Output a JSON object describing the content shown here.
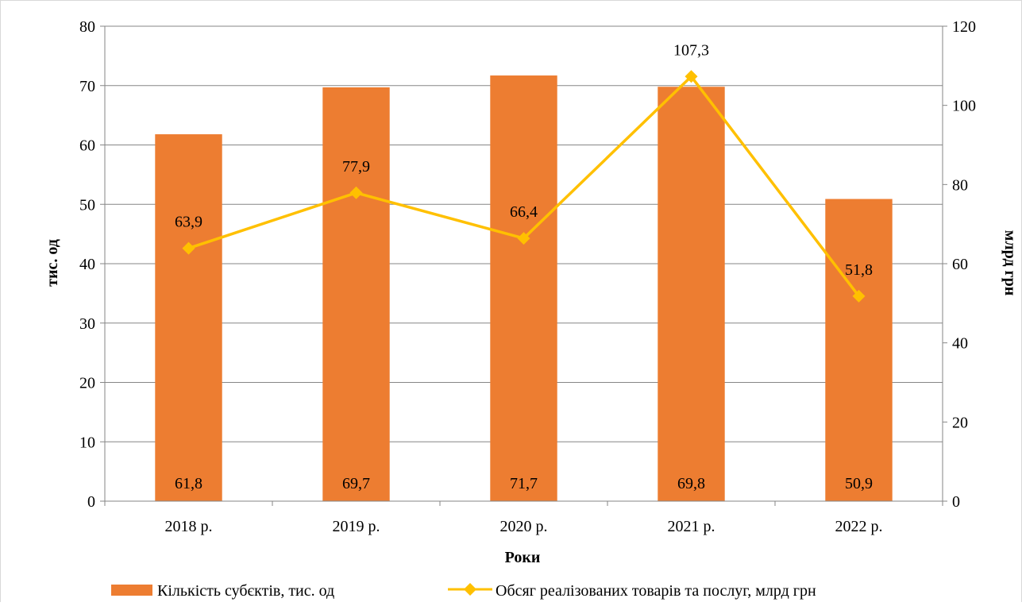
{
  "colors": {
    "bar": "#ED7D31",
    "line": "#FFC000",
    "grid": "#868686",
    "axis": "#868686",
    "text": "#000000",
    "frame": "#D9D9D9"
  },
  "chart_data": {
    "type": "bar",
    "categories": [
      "2018 р.",
      "2019 р.",
      "2020 р.",
      "2021 р.",
      "2022 р."
    ],
    "series": [
      {
        "name": "Кількість субєктів, тис. од",
        "type": "bar",
        "axis": "left",
        "values": [
          61.8,
          69.7,
          71.7,
          69.8,
          50.9
        ],
        "labels": [
          "61,8",
          "69,7",
          "71,7",
          "69,8",
          "50,9"
        ]
      },
      {
        "name": "Обсяг реалізованих товарів та послуг, млрд грн",
        "type": "line",
        "axis": "right",
        "marker": "diamond",
        "values": [
          63.9,
          77.9,
          66.4,
          107.3,
          51.8
        ],
        "labels": [
          "63,9",
          "77,9",
          "66,4",
          "107,3",
          "51,8"
        ]
      }
    ],
    "xlabel": "Роки",
    "ylabel": "тис. од",
    "y2label": "млрд грн",
    "ylim": [
      0,
      80
    ],
    "y2lim": [
      0,
      120
    ],
    "yticks": [
      "0",
      "10",
      "20",
      "30",
      "40",
      "50",
      "60",
      "70",
      "80"
    ],
    "y2ticks": [
      "0",
      "20",
      "40",
      "60",
      "80",
      "100",
      "120"
    ],
    "grid": true,
    "legend": "bottom"
  }
}
